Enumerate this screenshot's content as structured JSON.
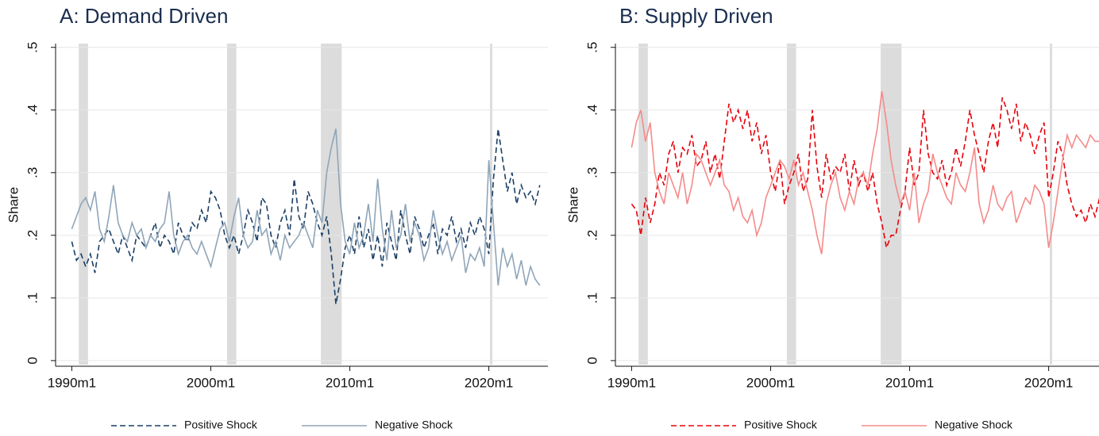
{
  "chart_data": [
    {
      "type": "line",
      "title": "A: Demand Driven",
      "y_label": "Share",
      "x": [
        360,
        364,
        368,
        372,
        376,
        380,
        384,
        388,
        392,
        396,
        400,
        404,
        408,
        412,
        416,
        420,
        424,
        428,
        432,
        436,
        440,
        444,
        448,
        452,
        456,
        460,
        464,
        468,
        472,
        476,
        480,
        484,
        488,
        492,
        496,
        500,
        504,
        508,
        512,
        516,
        520,
        524,
        528,
        532,
        536,
        540,
        544,
        548,
        552,
        556,
        560,
        564,
        568,
        572,
        576,
        580,
        584,
        588,
        592,
        596,
        600,
        604,
        608,
        612,
        616,
        620,
        624,
        628,
        632,
        636,
        640,
        644,
        648,
        652,
        656,
        660,
        664,
        668,
        672,
        676,
        680,
        684,
        688,
        692,
        696,
        700,
        704,
        708,
        712,
        716,
        720,
        724,
        728,
        732,
        736,
        740,
        744,
        748,
        752,
        756,
        760,
        764
      ],
      "xlim": [
        346,
        771
      ],
      "xticks": [
        {
          "value": 360,
          "label": "1990m1"
        },
        {
          "value": 480,
          "label": "2000m1"
        },
        {
          "value": 600,
          "label": "2010m1"
        },
        {
          "value": 720,
          "label": "2020m1"
        }
      ],
      "ylim": [
        -0.009,
        0.506
      ],
      "yticks": [
        0,
        {
          "value": 0.1,
          "label": ".1"
        },
        {
          "value": 0.2,
          "label": ".2"
        },
        {
          "value": 0.3,
          "label": ".3"
        },
        {
          "value": 0.4,
          "label": ".4"
        },
        {
          "value": 0.5,
          "label": ".5"
        }
      ],
      "grid": true,
      "shaded_periods": [
        [
          366,
          374
        ],
        [
          494,
          502
        ],
        [
          575,
          593
        ],
        [
          721,
          723
        ]
      ],
      "series": [
        {
          "name": "Positive Shock",
          "color": "#1a3f66",
          "line_style": "dashed",
          "values": [
            0.19,
            0.16,
            0.17,
            0.15,
            0.17,
            0.14,
            0.19,
            0.2,
            0.21,
            0.19,
            0.17,
            0.2,
            0.18,
            0.16,
            0.2,
            0.19,
            0.18,
            0.2,
            0.22,
            0.18,
            0.2,
            0.19,
            0.17,
            0.22,
            0.2,
            0.19,
            0.22,
            0.21,
            0.24,
            0.22,
            0.27,
            0.26,
            0.24,
            0.2,
            0.18,
            0.2,
            0.17,
            0.2,
            0.24,
            0.22,
            0.19,
            0.26,
            0.25,
            0.2,
            0.18,
            0.22,
            0.24,
            0.2,
            0.29,
            0.23,
            0.21,
            0.27,
            0.25,
            0.22,
            0.2,
            0.23,
            0.17,
            0.09,
            0.13,
            0.18,
            0.2,
            0.17,
            0.23,
            0.18,
            0.21,
            0.16,
            0.2,
            0.15,
            0.22,
            0.19,
            0.16,
            0.24,
            0.2,
            0.17,
            0.23,
            0.21,
            0.18,
            0.2,
            0.22,
            0.17,
            0.21,
            0.2,
            0.23,
            0.19,
            0.21,
            0.18,
            0.22,
            0.2,
            0.23,
            0.21,
            0.17,
            0.29,
            0.37,
            0.32,
            0.27,
            0.3,
            0.25,
            0.28,
            0.26,
            0.27,
            0.25,
            0.28
          ]
        },
        {
          "name": "Negative Shock",
          "color": "#8fa5b8",
          "line_style": "solid",
          "values": [
            0.21,
            0.23,
            0.25,
            0.26,
            0.24,
            0.27,
            0.21,
            0.19,
            0.23,
            0.28,
            0.22,
            0.2,
            0.19,
            0.22,
            0.2,
            0.21,
            0.18,
            0.2,
            0.19,
            0.21,
            0.22,
            0.27,
            0.2,
            0.17,
            0.19,
            0.2,
            0.18,
            0.17,
            0.19,
            0.17,
            0.15,
            0.18,
            0.21,
            0.22,
            0.19,
            0.23,
            0.26,
            0.2,
            0.18,
            0.19,
            0.24,
            0.2,
            0.21,
            0.17,
            0.19,
            0.16,
            0.2,
            0.18,
            0.19,
            0.2,
            0.22,
            0.2,
            0.18,
            0.24,
            0.22,
            0.3,
            0.34,
            0.37,
            0.25,
            0.19,
            0.17,
            0.22,
            0.18,
            0.2,
            0.25,
            0.19,
            0.29,
            0.21,
            0.16,
            0.24,
            0.18,
            0.2,
            0.25,
            0.19,
            0.22,
            0.2,
            0.16,
            0.18,
            0.24,
            0.2,
            0.17,
            0.19,
            0.16,
            0.18,
            0.2,
            0.14,
            0.17,
            0.16,
            0.18,
            0.15,
            0.32,
            0.22,
            0.12,
            0.18,
            0.15,
            0.17,
            0.13,
            0.16,
            0.12,
            0.15,
            0.13,
            0.12
          ]
        }
      ]
    },
    {
      "type": "line",
      "title": "B: Supply Driven",
      "y_label": "Share",
      "x": [
        360,
        364,
        368,
        372,
        376,
        380,
        384,
        388,
        392,
        396,
        400,
        404,
        408,
        412,
        416,
        420,
        424,
        428,
        432,
        436,
        440,
        444,
        448,
        452,
        456,
        460,
        464,
        468,
        472,
        476,
        480,
        484,
        488,
        492,
        496,
        500,
        504,
        508,
        512,
        516,
        520,
        524,
        528,
        532,
        536,
        540,
        544,
        548,
        552,
        556,
        560,
        564,
        568,
        572,
        576,
        580,
        584,
        588,
        592,
        596,
        600,
        604,
        608,
        612,
        616,
        620,
        624,
        628,
        632,
        636,
        640,
        644,
        648,
        652,
        656,
        660,
        664,
        668,
        672,
        676,
        680,
        684,
        688,
        692,
        696,
        700,
        704,
        708,
        712,
        716,
        720,
        724,
        728,
        732,
        736,
        740,
        744,
        748,
        752,
        756,
        760,
        764
      ],
      "xlim": [
        346,
        771
      ],
      "xticks": [
        {
          "value": 360,
          "label": "1990m1"
        },
        {
          "value": 480,
          "label": "2000m1"
        },
        {
          "value": 600,
          "label": "2010m1"
        },
        {
          "value": 720,
          "label": "2020m1"
        }
      ],
      "ylim": [
        -0.009,
        0.506
      ],
      "yticks": [
        0,
        {
          "value": 0.1,
          "label": ".1"
        },
        {
          "value": 0.2,
          "label": ".2"
        },
        {
          "value": 0.3,
          "label": ".3"
        },
        {
          "value": 0.4,
          "label": ".4"
        },
        {
          "value": 0.5,
          "label": ".5"
        }
      ],
      "grid": true,
      "shaded_periods": [
        [
          366,
          374
        ],
        [
          494,
          502
        ],
        [
          575,
          593
        ],
        [
          721,
          723
        ]
      ],
      "series": [
        {
          "name": "Positive Shock",
          "color": "#e8000b",
          "line_style": "dashed",
          "values": [
            0.25,
            0.24,
            0.2,
            0.26,
            0.22,
            0.25,
            0.3,
            0.28,
            0.33,
            0.35,
            0.3,
            0.34,
            0.33,
            0.36,
            0.31,
            0.32,
            0.35,
            0.3,
            0.33,
            0.29,
            0.35,
            0.41,
            0.38,
            0.4,
            0.37,
            0.4,
            0.35,
            0.38,
            0.33,
            0.36,
            0.3,
            0.27,
            0.32,
            0.25,
            0.28,
            0.3,
            0.33,
            0.27,
            0.29,
            0.4,
            0.31,
            0.26,
            0.33,
            0.29,
            0.31,
            0.3,
            0.33,
            0.27,
            0.32,
            0.28,
            0.3,
            0.27,
            0.3,
            0.25,
            0.22,
            0.18,
            0.2,
            0.2,
            0.24,
            0.27,
            0.34,
            0.28,
            0.3,
            0.4,
            0.33,
            0.3,
            0.29,
            0.32,
            0.28,
            0.3,
            0.34,
            0.31,
            0.35,
            0.4,
            0.36,
            0.33,
            0.3,
            0.35,
            0.38,
            0.34,
            0.42,
            0.4,
            0.37,
            0.41,
            0.35,
            0.38,
            0.36,
            0.33,
            0.36,
            0.38,
            0.26,
            0.3,
            0.35,
            0.33,
            0.28,
            0.25,
            0.23,
            0.24,
            0.22,
            0.25,
            0.23,
            0.26
          ]
        },
        {
          "name": "Negative Shock",
          "color": "#f58a8a",
          "line_style": "solid",
          "values": [
            0.34,
            0.38,
            0.4,
            0.35,
            0.38,
            0.3,
            0.27,
            0.25,
            0.3,
            0.28,
            0.26,
            0.3,
            0.25,
            0.28,
            0.33,
            0.32,
            0.3,
            0.28,
            0.3,
            0.32,
            0.28,
            0.27,
            0.24,
            0.26,
            0.23,
            0.22,
            0.24,
            0.2,
            0.22,
            0.26,
            0.28,
            0.3,
            0.32,
            0.31,
            0.29,
            0.32,
            0.28,
            0.3,
            0.27,
            0.24,
            0.2,
            0.17,
            0.25,
            0.28,
            0.3,
            0.26,
            0.24,
            0.27,
            0.25,
            0.29,
            0.3,
            0.28,
            0.33,
            0.37,
            0.43,
            0.38,
            0.32,
            0.28,
            0.25,
            0.27,
            0.24,
            0.3,
            0.22,
            0.25,
            0.27,
            0.33,
            0.3,
            0.28,
            0.26,
            0.25,
            0.3,
            0.28,
            0.27,
            0.3,
            0.34,
            0.25,
            0.22,
            0.24,
            0.28,
            0.25,
            0.24,
            0.26,
            0.27,
            0.22,
            0.24,
            0.26,
            0.25,
            0.28,
            0.27,
            0.25,
            0.18,
            0.22,
            0.27,
            0.32,
            0.36,
            0.34,
            0.36,
            0.35,
            0.34,
            0.36,
            0.35,
            0.35
          ]
        }
      ]
    }
  ]
}
